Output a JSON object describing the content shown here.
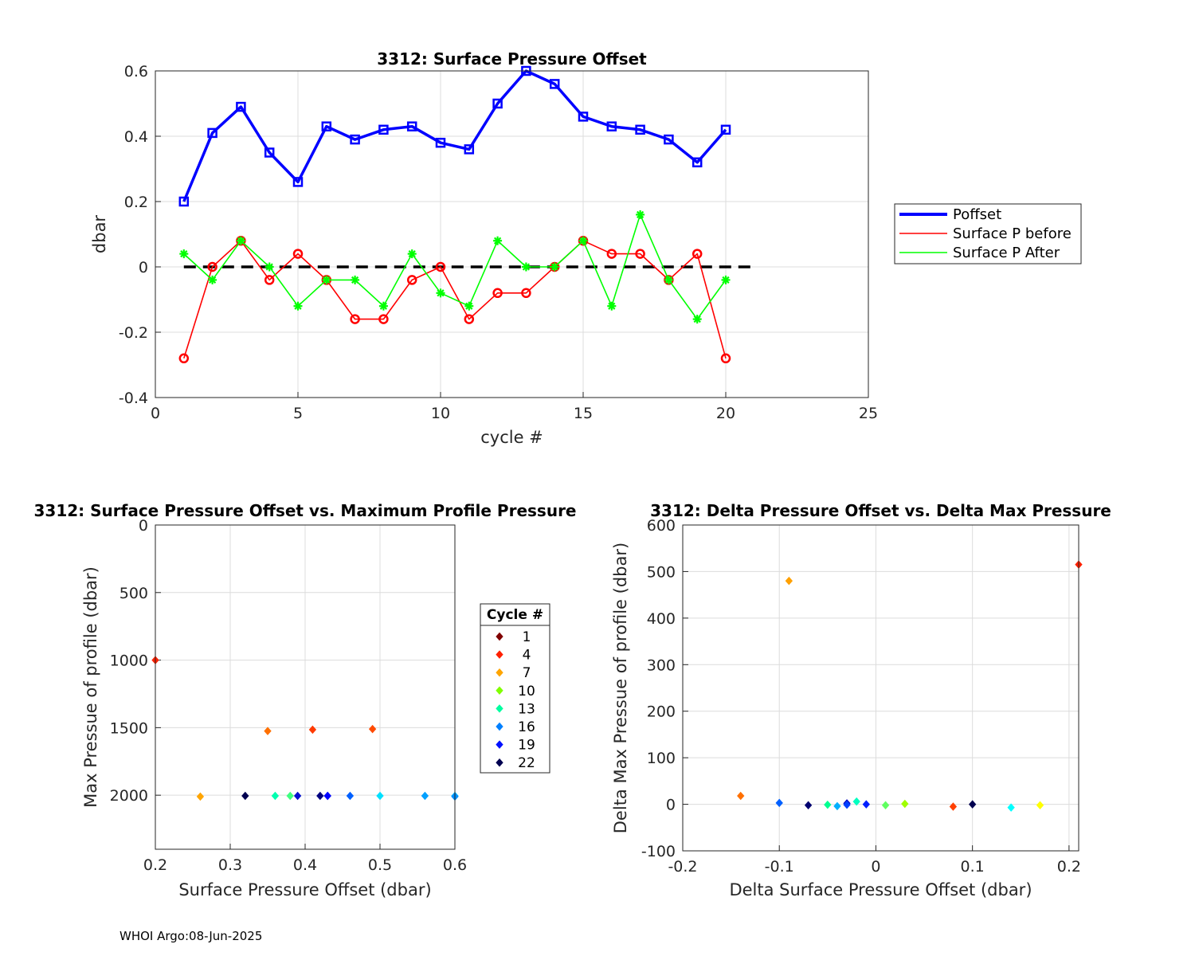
{
  "footer": "WHOI Argo:08-Jun-2025",
  "chart_data": [
    {
      "type": "line",
      "title": "3312: Surface Pressure Offset",
      "xlabel": "cycle #",
      "ylabel": "dbar",
      "xlim": [
        0,
        25
      ],
      "ylim": [
        -0.4,
        0.6
      ],
      "xticks": [
        "0",
        "5",
        "10",
        "15",
        "20",
        "25"
      ],
      "yticks": [
        "-0.4",
        "-0.2",
        "0",
        "0.2",
        "0.4",
        "0.6"
      ],
      "grid": true,
      "legend": "outside-right",
      "x": [
        1,
        2,
        3,
        4,
        5,
        6,
        7,
        8,
        9,
        10,
        11,
        12,
        13,
        14,
        15,
        16,
        17,
        18,
        19,
        20
      ],
      "series": [
        {
          "name": "Poffset",
          "color": "#0000ff",
          "values": [
            0.2,
            0.41,
            0.49,
            0.35,
            0.26,
            0.43,
            0.39,
            0.42,
            0.43,
            0.38,
            0.36,
            0.5,
            0.6,
            0.56,
            0.46,
            0.43,
            0.42,
            0.39,
            0.32,
            0.42
          ]
        },
        {
          "name": "Surface P before",
          "color": "#ff0000",
          "values": [
            -0.28,
            0.0,
            0.08,
            -0.04,
            0.04,
            -0.04,
            -0.16,
            -0.16,
            -0.04,
            0.0,
            -0.16,
            -0.08,
            -0.08,
            0.0,
            0.08,
            0.04,
            0.04,
            -0.04,
            0.04,
            -0.28
          ]
        },
        {
          "name": "Surface P After",
          "color": "#00ff00",
          "values": [
            0.04,
            -0.04,
            0.08,
            0.0,
            -0.12,
            -0.04,
            -0.04,
            -0.12,
            0.04,
            -0.08,
            -0.12,
            0.08,
            0.0,
            0.0,
            0.08,
            -0.12,
            0.16,
            -0.04,
            -0.16,
            -0.04
          ]
        }
      ],
      "zero_line": {
        "x": [
          1,
          21
        ],
        "y": 0,
        "color": "#000000"
      }
    },
    {
      "type": "scatter",
      "title": "3312: Surface Pressure Offset vs. Maximum Profile Pressure",
      "xlabel": "Surface Pressure Offset (dbar)",
      "ylabel": "Max Pressue of profile (dbar)",
      "xlim": [
        0.2,
        0.6
      ],
      "ylim": [
        0,
        2400
      ],
      "y_reversed": true,
      "xticks": [
        "0.2",
        "0.3",
        "0.4",
        "0.5",
        "0.6"
      ],
      "yticks": [
        "0",
        "500",
        "1000",
        "1500",
        "2000"
      ],
      "grid": true,
      "legend": {
        "title": "Cycle #",
        "entries": [
          {
            "label": "1",
            "color": "#800000"
          },
          {
            "label": "4",
            "color": "#ff2000"
          },
          {
            "label": "7",
            "color": "#ffa500"
          },
          {
            "label": "10",
            "color": "#80ff00"
          },
          {
            "label": "13",
            "color": "#00ffa0"
          },
          {
            "label": "16",
            "color": "#0080ff"
          },
          {
            "label": "19",
            "color": "#0010ff"
          },
          {
            "label": "22",
            "color": "#000050"
          }
        ]
      },
      "points": [
        {
          "x": 0.2,
          "y": 1000,
          "color": "#ff2000"
        },
        {
          "x": 0.41,
          "y": 1515,
          "color": "#ff3a00"
        },
        {
          "x": 0.49,
          "y": 1510,
          "color": "#ff4a00"
        },
        {
          "x": 0.35,
          "y": 1525,
          "color": "#ff7000"
        },
        {
          "x": 0.26,
          "y": 2010,
          "color": "#ffa500"
        },
        {
          "x": 0.43,
          "y": 2005,
          "color": "#0030ff"
        },
        {
          "x": 0.39,
          "y": 2005,
          "color": "#0010d0"
        },
        {
          "x": 0.42,
          "y": 2005,
          "color": "#000080"
        },
        {
          "x": 0.43,
          "y": 2005,
          "color": "#0000ff"
        },
        {
          "x": 0.38,
          "y": 2005,
          "color": "#40ff80"
        },
        {
          "x": 0.36,
          "y": 2005,
          "color": "#00ffb0"
        },
        {
          "x": 0.5,
          "y": 2005,
          "color": "#00e0ff"
        },
        {
          "x": 0.6,
          "y": 2005,
          "color": "#00c0ff"
        },
        {
          "x": 0.56,
          "y": 2005,
          "color": "#00a0ff"
        },
        {
          "x": 0.46,
          "y": 2005,
          "color": "#0060ff"
        },
        {
          "x": 0.32,
          "y": 2005,
          "color": "#000050"
        },
        {
          "x": 0.6,
          "y": 2010,
          "color": "#0090ff"
        }
      ]
    },
    {
      "type": "scatter",
      "title": "3312: Delta Pressure Offset vs. Delta Max Pressure",
      "xlabel": "Delta Surface Pressure Offset (dbar)",
      "ylabel": "Delta Max Pressue of profile (dbar)",
      "xlim": [
        -0.2,
        0.21
      ],
      "ylim": [
        -100,
        600
      ],
      "xticks": [
        "-0.2",
        "-0.1",
        "0",
        "0.1",
        "0.2"
      ],
      "yticks": [
        "-100",
        "0",
        "100",
        "200",
        "300",
        "400",
        "500",
        "600"
      ],
      "grid": true,
      "points": [
        {
          "x": 0.21,
          "y": 515,
          "color": "#ff2000"
        },
        {
          "x": -0.09,
          "y": 480,
          "color": "#ffa000"
        },
        {
          "x": -0.14,
          "y": 18,
          "color": "#ff7000"
        },
        {
          "x": -0.1,
          "y": 3,
          "color": "#0060ff"
        },
        {
          "x": -0.07,
          "y": -2,
          "color": "#000070"
        },
        {
          "x": -0.05,
          "y": -1,
          "color": "#00ff90"
        },
        {
          "x": -0.04,
          "y": -4,
          "color": "#00b0ff"
        },
        {
          "x": -0.03,
          "y": 2,
          "color": "#0000c0"
        },
        {
          "x": -0.03,
          "y": -1,
          "color": "#0040ff"
        },
        {
          "x": -0.02,
          "y": 6,
          "color": "#00ffc0"
        },
        {
          "x": -0.01,
          "y": 0,
          "color": "#0020ff"
        },
        {
          "x": 0.01,
          "y": -2,
          "color": "#60ff60"
        },
        {
          "x": 0.03,
          "y": 1,
          "color": "#a0ff00"
        },
        {
          "x": 0.08,
          "y": -5,
          "color": "#ff4000"
        },
        {
          "x": 0.1,
          "y": 0,
          "color": "#000050"
        },
        {
          "x": 0.14,
          "y": -7,
          "color": "#00ffff"
        },
        {
          "x": 0.17,
          "y": -2,
          "color": "#ffff00"
        }
      ]
    }
  ]
}
